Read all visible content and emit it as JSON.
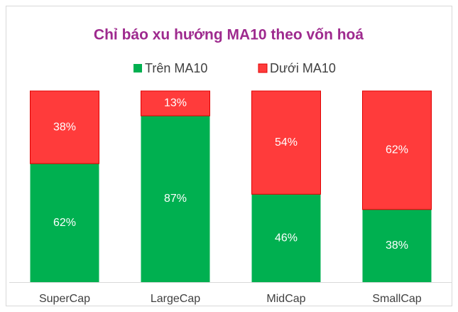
{
  "chart_data": {
    "type": "stacked_bar",
    "title": "Chỉ báo xu hướng MA10 theo vốn hoá",
    "categories": [
      "SuperCap",
      "LargeCap",
      "MidCap",
      "SmallCap"
    ],
    "series": [
      {
        "name": "Trên MA10",
        "color": "#00b050",
        "values": [
          62,
          87,
          46,
          38
        ],
        "value_labels": [
          "62%",
          "87%",
          "46%",
          "38%"
        ]
      },
      {
        "name": "Dưới MA10",
        "color": "#ff3b3b",
        "values": [
          38,
          13,
          54,
          62
        ],
        "value_labels": [
          "38%",
          "13%",
          "54%",
          "62%"
        ]
      }
    ],
    "legend": "top"
  }
}
